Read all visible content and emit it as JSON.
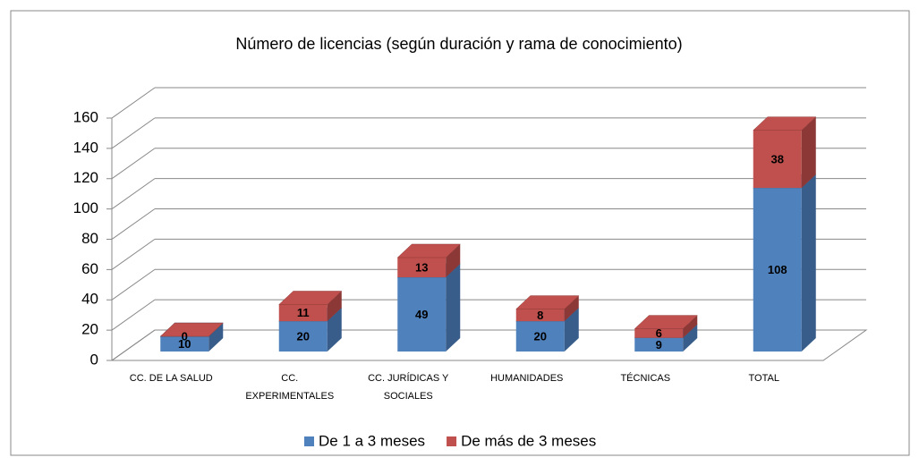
{
  "chart_data": {
    "type": "bar3d_stacked",
    "title": "Número de licencias (según duración y rama de conocimiento)",
    "categories": [
      "CC. DE LA SALUD",
      "CC. EXPERIMENTALES",
      "CC. JURÍDICAS Y SOCIALES",
      "HUMANIDADES",
      "TÉCNICAS",
      "TOTAL"
    ],
    "series": [
      {
        "name": "De 1 a 3 meses",
        "color": "#4f81bd",
        "side": "#385d8a",
        "values": [
          10,
          20,
          49,
          20,
          9,
          108
        ]
      },
      {
        "name": "De más de 3 meses",
        "color": "#c0504d",
        "side": "#8c3836",
        "values": [
          0,
          11,
          13,
          8,
          6,
          38
        ]
      }
    ],
    "ylim": [
      0,
      160
    ],
    "yticks": [
      0,
      20,
      40,
      60,
      80,
      100,
      120,
      140,
      160
    ],
    "grid": true,
    "legend": "bottom"
  }
}
